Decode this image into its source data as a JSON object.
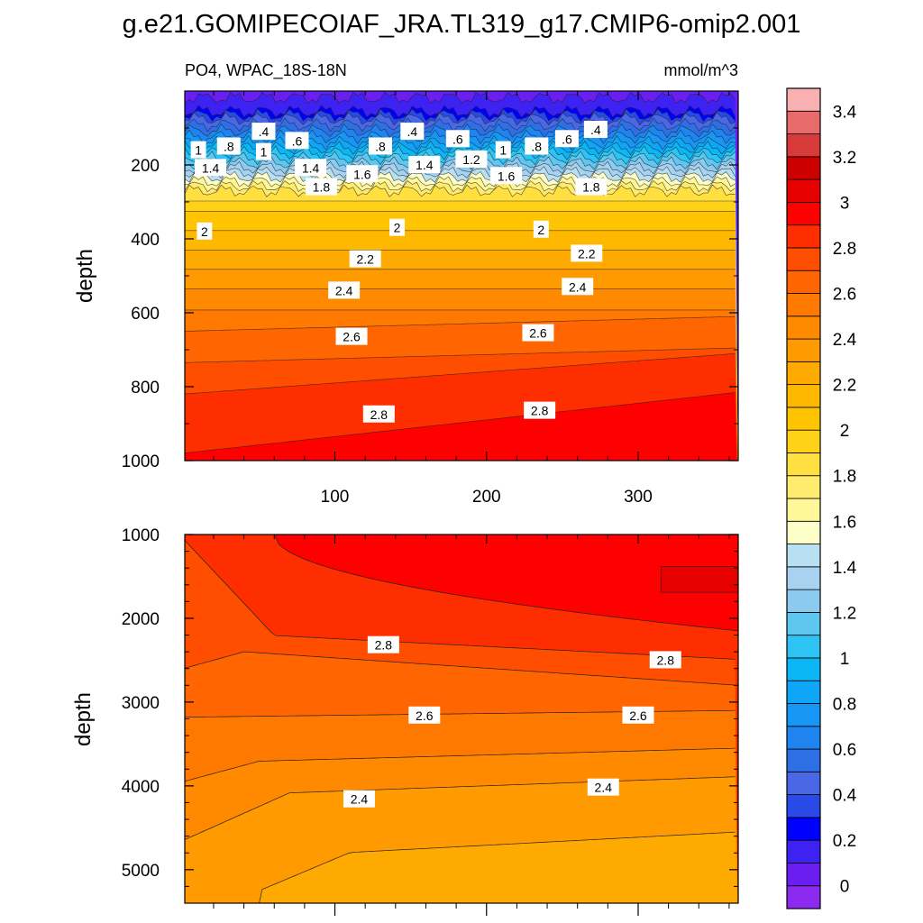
{
  "title": "g.e21.GOMIPECOIAF_JRA.TL319_g17.CMIP6-omip2.001",
  "subtitle_left": "PO4, WPAC_18S-18N",
  "subtitle_right": "mmol/m^3",
  "chart_data": [
    {
      "type": "heatmap",
      "panel": "upper",
      "xlabel": "",
      "ylabel": "depth",
      "xlim": [
        1,
        366
      ],
      "ylim": [
        1000,
        0
      ],
      "x_ticks": [
        100,
        200,
        300
      ],
      "y_ticks": [
        200,
        400,
        600,
        800,
        1000
      ],
      "contour_interval": 0.1,
      "contour_labels": [
        {
          "text": ".4",
          "x": 53,
          "y": 110
        },
        {
          "text": ".8",
          "x": 30,
          "y": 150
        },
        {
          "text": ".6",
          "x": 75,
          "y": 135
        },
        {
          "text": "1",
          "x": 53,
          "y": 165
        },
        {
          "text": "1.4",
          "x": 18,
          "y": 208
        },
        {
          "text": "1.4",
          "x": 84,
          "y": 208
        },
        {
          "text": "1.8",
          "x": 91,
          "y": 260
        },
        {
          "text": "1",
          "x": 10,
          "y": 160
        },
        {
          "text": ".8",
          "x": 130,
          "y": 150
        },
        {
          "text": "1.6",
          "x": 118,
          "y": 225
        },
        {
          "text": ".4",
          "x": 151,
          "y": 110
        },
        {
          "text": "1.4",
          "x": 159,
          "y": 200
        },
        {
          "text": ".6",
          "x": 181,
          "y": 130
        },
        {
          "text": "1.2",
          "x": 190,
          "y": 185
        },
        {
          "text": "1",
          "x": 211,
          "y": 160
        },
        {
          "text": "1.6",
          "x": 213,
          "y": 230
        },
        {
          "text": ".8",
          "x": 233,
          "y": 150
        },
        {
          "text": ".6",
          "x": 253,
          "y": 130
        },
        {
          "text": ".4",
          "x": 272,
          "y": 105
        },
        {
          "text": "1.8",
          "x": 269,
          "y": 260
        },
        {
          "text": "2",
          "x": 14,
          "y": 380
        },
        {
          "text": "2",
          "x": 141,
          "y": 370
        },
        {
          "text": "2",
          "x": 236,
          "y": 375
        },
        {
          "text": "2.2",
          "x": 120,
          "y": 455
        },
        {
          "text": "2.2",
          "x": 266,
          "y": 440
        },
        {
          "text": "2.4",
          "x": 106,
          "y": 540
        },
        {
          "text": "2.4",
          "x": 260,
          "y": 530
        },
        {
          "text": "2.6",
          "x": 111,
          "y": 665
        },
        {
          "text": "2.6",
          "x": 234,
          "y": 655
        },
        {
          "text": "2.8",
          "x": 129,
          "y": 875
        },
        {
          "text": "2.8",
          "x": 235,
          "y": 865
        }
      ]
    },
    {
      "type": "heatmap",
      "panel": "lower",
      "xlabel": "",
      "ylabel": "depth",
      "xlim": [
        1,
        366
      ],
      "ylim": [
        5400,
        1000
      ],
      "y_ticks": [
        1000,
        2000,
        3000,
        4000,
        5000
      ],
      "contour_interval": 0.1,
      "contour_labels": [
        {
          "text": "2.8",
          "x": 132,
          "y": 2320
        },
        {
          "text": "2.8",
          "x": 318,
          "y": 2500
        },
        {
          "text": "2.6",
          "x": 159,
          "y": 3160
        },
        {
          "text": "2.6",
          "x": 300,
          "y": 3160
        },
        {
          "text": "2.4",
          "x": 116,
          "y": 4160
        },
        {
          "text": "2.4",
          "x": 277,
          "y": 4020
        }
      ]
    }
  ],
  "colorbar": {
    "colors": [
      "#8c2af0",
      "#6a1ef0",
      "#3e22f2",
      "#0000ff",
      "#2a4ae8",
      "#4a68e6",
      "#2e6fe6",
      "#1f84f0",
      "#1796f5",
      "#10a6f7",
      "#0bb6f5",
      "#2dc3f5",
      "#5dc7f0",
      "#8ccaf0",
      "#a8d2f0",
      "#b8e0f2",
      "#fefec8",
      "#fff79a",
      "#ffec6e",
      "#ffe040",
      "#ffd21a",
      "#ffc400",
      "#ffb800",
      "#ffaa00",
      "#ff9a00",
      "#ff8a00",
      "#ff7800",
      "#ff6500",
      "#ff4e00",
      "#ff2e00",
      "#ff0000",
      "#e60000",
      "#cc0000",
      "#d83a3a",
      "#e86a6a",
      "#f8b0b0"
    ],
    "tick_labels": [
      "0",
      "0.2",
      "0.4",
      "0.6",
      "0.8",
      "1",
      "1.2",
      "1.4",
      "1.6",
      "1.8",
      "2",
      "2.2",
      "2.4",
      "2.6",
      "2.8",
      "3",
      "3.2",
      "3.4"
    ]
  }
}
